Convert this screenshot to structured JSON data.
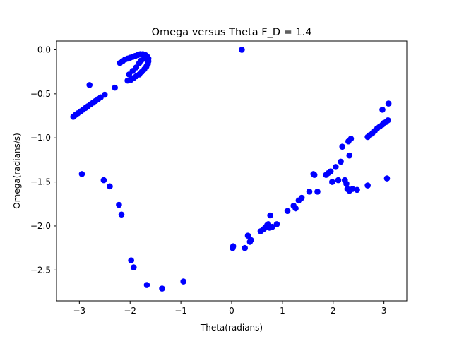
{
  "chart_data": {
    "type": "scatter",
    "title": "Omega versus Theta F_D = 1.4",
    "xlabel": "Theta(radians)",
    "ylabel": "Omega(radians/s)",
    "xlim": [
      -3.45,
      3.45
    ],
    "ylim": [
      -2.85,
      0.1
    ],
    "grid": false,
    "marker_color": "#0000ff",
    "x_ticks": [
      {
        "value": -3,
        "label": "−3"
      },
      {
        "value": -2,
        "label": "−2"
      },
      {
        "value": -1,
        "label": "−1"
      },
      {
        "value": 0,
        "label": "0"
      },
      {
        "value": 1,
        "label": "1"
      },
      {
        "value": 2,
        "label": "2"
      },
      {
        "value": 3,
        "label": "3"
      }
    ],
    "y_ticks": [
      {
        "value": 0.0,
        "label": "0.0"
      },
      {
        "value": -0.5,
        "label": "−0.5"
      },
      {
        "value": -1.0,
        "label": "−1.0"
      },
      {
        "value": -1.5,
        "label": "−1.5"
      },
      {
        "value": -2.0,
        "label": "−2.0"
      },
      {
        "value": -2.5,
        "label": "−2.5"
      }
    ],
    "series": [
      {
        "points": [
          [
            0.2,
            0.0
          ],
          [
            -2.8,
            -0.4
          ],
          [
            -2.3,
            -0.43
          ],
          [
            -2.5,
            -0.51
          ],
          [
            -3.12,
            -0.76
          ],
          [
            -3.08,
            -0.74
          ],
          [
            -3.03,
            -0.72
          ],
          [
            -2.98,
            -0.7
          ],
          [
            -2.93,
            -0.68
          ],
          [
            -2.88,
            -0.66
          ],
          [
            -2.83,
            -0.64
          ],
          [
            -2.78,
            -0.62
          ],
          [
            -2.73,
            -0.6
          ],
          [
            -2.68,
            -0.58
          ],
          [
            -2.63,
            -0.56
          ],
          [
            -2.58,
            -0.54
          ],
          [
            -2.2,
            -0.15
          ],
          [
            -2.15,
            -0.13
          ],
          [
            -2.1,
            -0.11
          ],
          [
            -2.05,
            -0.1
          ],
          [
            -2.0,
            -0.09
          ],
          [
            -1.95,
            -0.08
          ],
          [
            -1.9,
            -0.07
          ],
          [
            -1.85,
            -0.06
          ],
          [
            -1.8,
            -0.05
          ],
          [
            -1.75,
            -0.05
          ],
          [
            -1.7,
            -0.06
          ],
          [
            -1.66,
            -0.08
          ],
          [
            -1.64,
            -0.1
          ],
          [
            -1.64,
            -0.13
          ],
          [
            -1.65,
            -0.16
          ],
          [
            -1.68,
            -0.19
          ],
          [
            -1.72,
            -0.22
          ],
          [
            -1.77,
            -0.25
          ],
          [
            -1.82,
            -0.28
          ],
          [
            -1.88,
            -0.3
          ],
          [
            -1.93,
            -0.32
          ],
          [
            -1.98,
            -0.34
          ],
          [
            -2.05,
            -0.35
          ],
          [
            -1.78,
            -0.12
          ],
          [
            -1.72,
            -0.1
          ],
          [
            -1.82,
            -0.15
          ],
          [
            -1.88,
            -0.2
          ],
          [
            -1.95,
            -0.24
          ],
          [
            -2.02,
            -0.28
          ],
          [
            -2.95,
            -1.41
          ],
          [
            -2.52,
            -1.48
          ],
          [
            -2.4,
            -1.55
          ],
          [
            -2.22,
            -1.76
          ],
          [
            -2.17,
            -1.87
          ],
          [
            -1.98,
            -2.39
          ],
          [
            -1.93,
            -2.47
          ],
          [
            -1.67,
            -2.67
          ],
          [
            -1.37,
            -2.71
          ],
          [
            -0.95,
            -2.63
          ],
          [
            0.02,
            -2.25
          ],
          [
            0.03,
            -2.23
          ],
          [
            0.26,
            -2.25
          ],
          [
            0.32,
            -2.11
          ],
          [
            0.38,
            -2.16
          ],
          [
            0.36,
            -2.18
          ],
          [
            0.57,
            -2.06
          ],
          [
            0.62,
            -2.04
          ],
          [
            0.66,
            -2.02
          ],
          [
            0.7,
            -1.99
          ],
          [
            0.72,
            -1.98
          ],
          [
            0.75,
            -2.02
          ],
          [
            0.8,
            -2.01
          ],
          [
            0.89,
            -1.98
          ],
          [
            0.76,
            -1.88
          ],
          [
            1.1,
            -1.83
          ],
          [
            1.22,
            -1.77
          ],
          [
            1.26,
            -1.8
          ],
          [
            1.32,
            -1.71
          ],
          [
            1.38,
            -1.68
          ],
          [
            1.53,
            -1.61
          ],
          [
            1.61,
            -1.41
          ],
          [
            1.63,
            -1.42
          ],
          [
            1.69,
            -1.61
          ],
          [
            1.86,
            -1.42
          ],
          [
            1.9,
            -1.4
          ],
          [
            1.95,
            -1.38
          ],
          [
            1.98,
            -1.5
          ],
          [
            2.05,
            -1.33
          ],
          [
            2.1,
            -1.48
          ],
          [
            2.15,
            -1.27
          ],
          [
            2.18,
            -1.1
          ],
          [
            2.23,
            -1.48
          ],
          [
            2.26,
            -1.52
          ],
          [
            2.28,
            -1.58
          ],
          [
            2.32,
            -1.6
          ],
          [
            2.3,
            -1.04
          ],
          [
            2.35,
            -1.01
          ],
          [
            2.32,
            -1.2
          ],
          [
            2.38,
            -1.58
          ],
          [
            2.47,
            -1.59
          ],
          [
            2.68,
            -0.99
          ],
          [
            2.72,
            -0.97
          ],
          [
            2.77,
            -0.95
          ],
          [
            2.82,
            -0.92
          ],
          [
            2.87,
            -0.89
          ],
          [
            2.92,
            -0.87
          ],
          [
            2.97,
            -0.85
          ],
          [
            3.0,
            -0.83
          ],
          [
            3.04,
            -0.82
          ],
          [
            3.08,
            -0.8
          ],
          [
            2.97,
            -0.68
          ],
          [
            3.09,
            -0.61
          ],
          [
            2.68,
            -1.54
          ],
          [
            3.06,
            -1.46
          ]
        ]
      }
    ]
  }
}
